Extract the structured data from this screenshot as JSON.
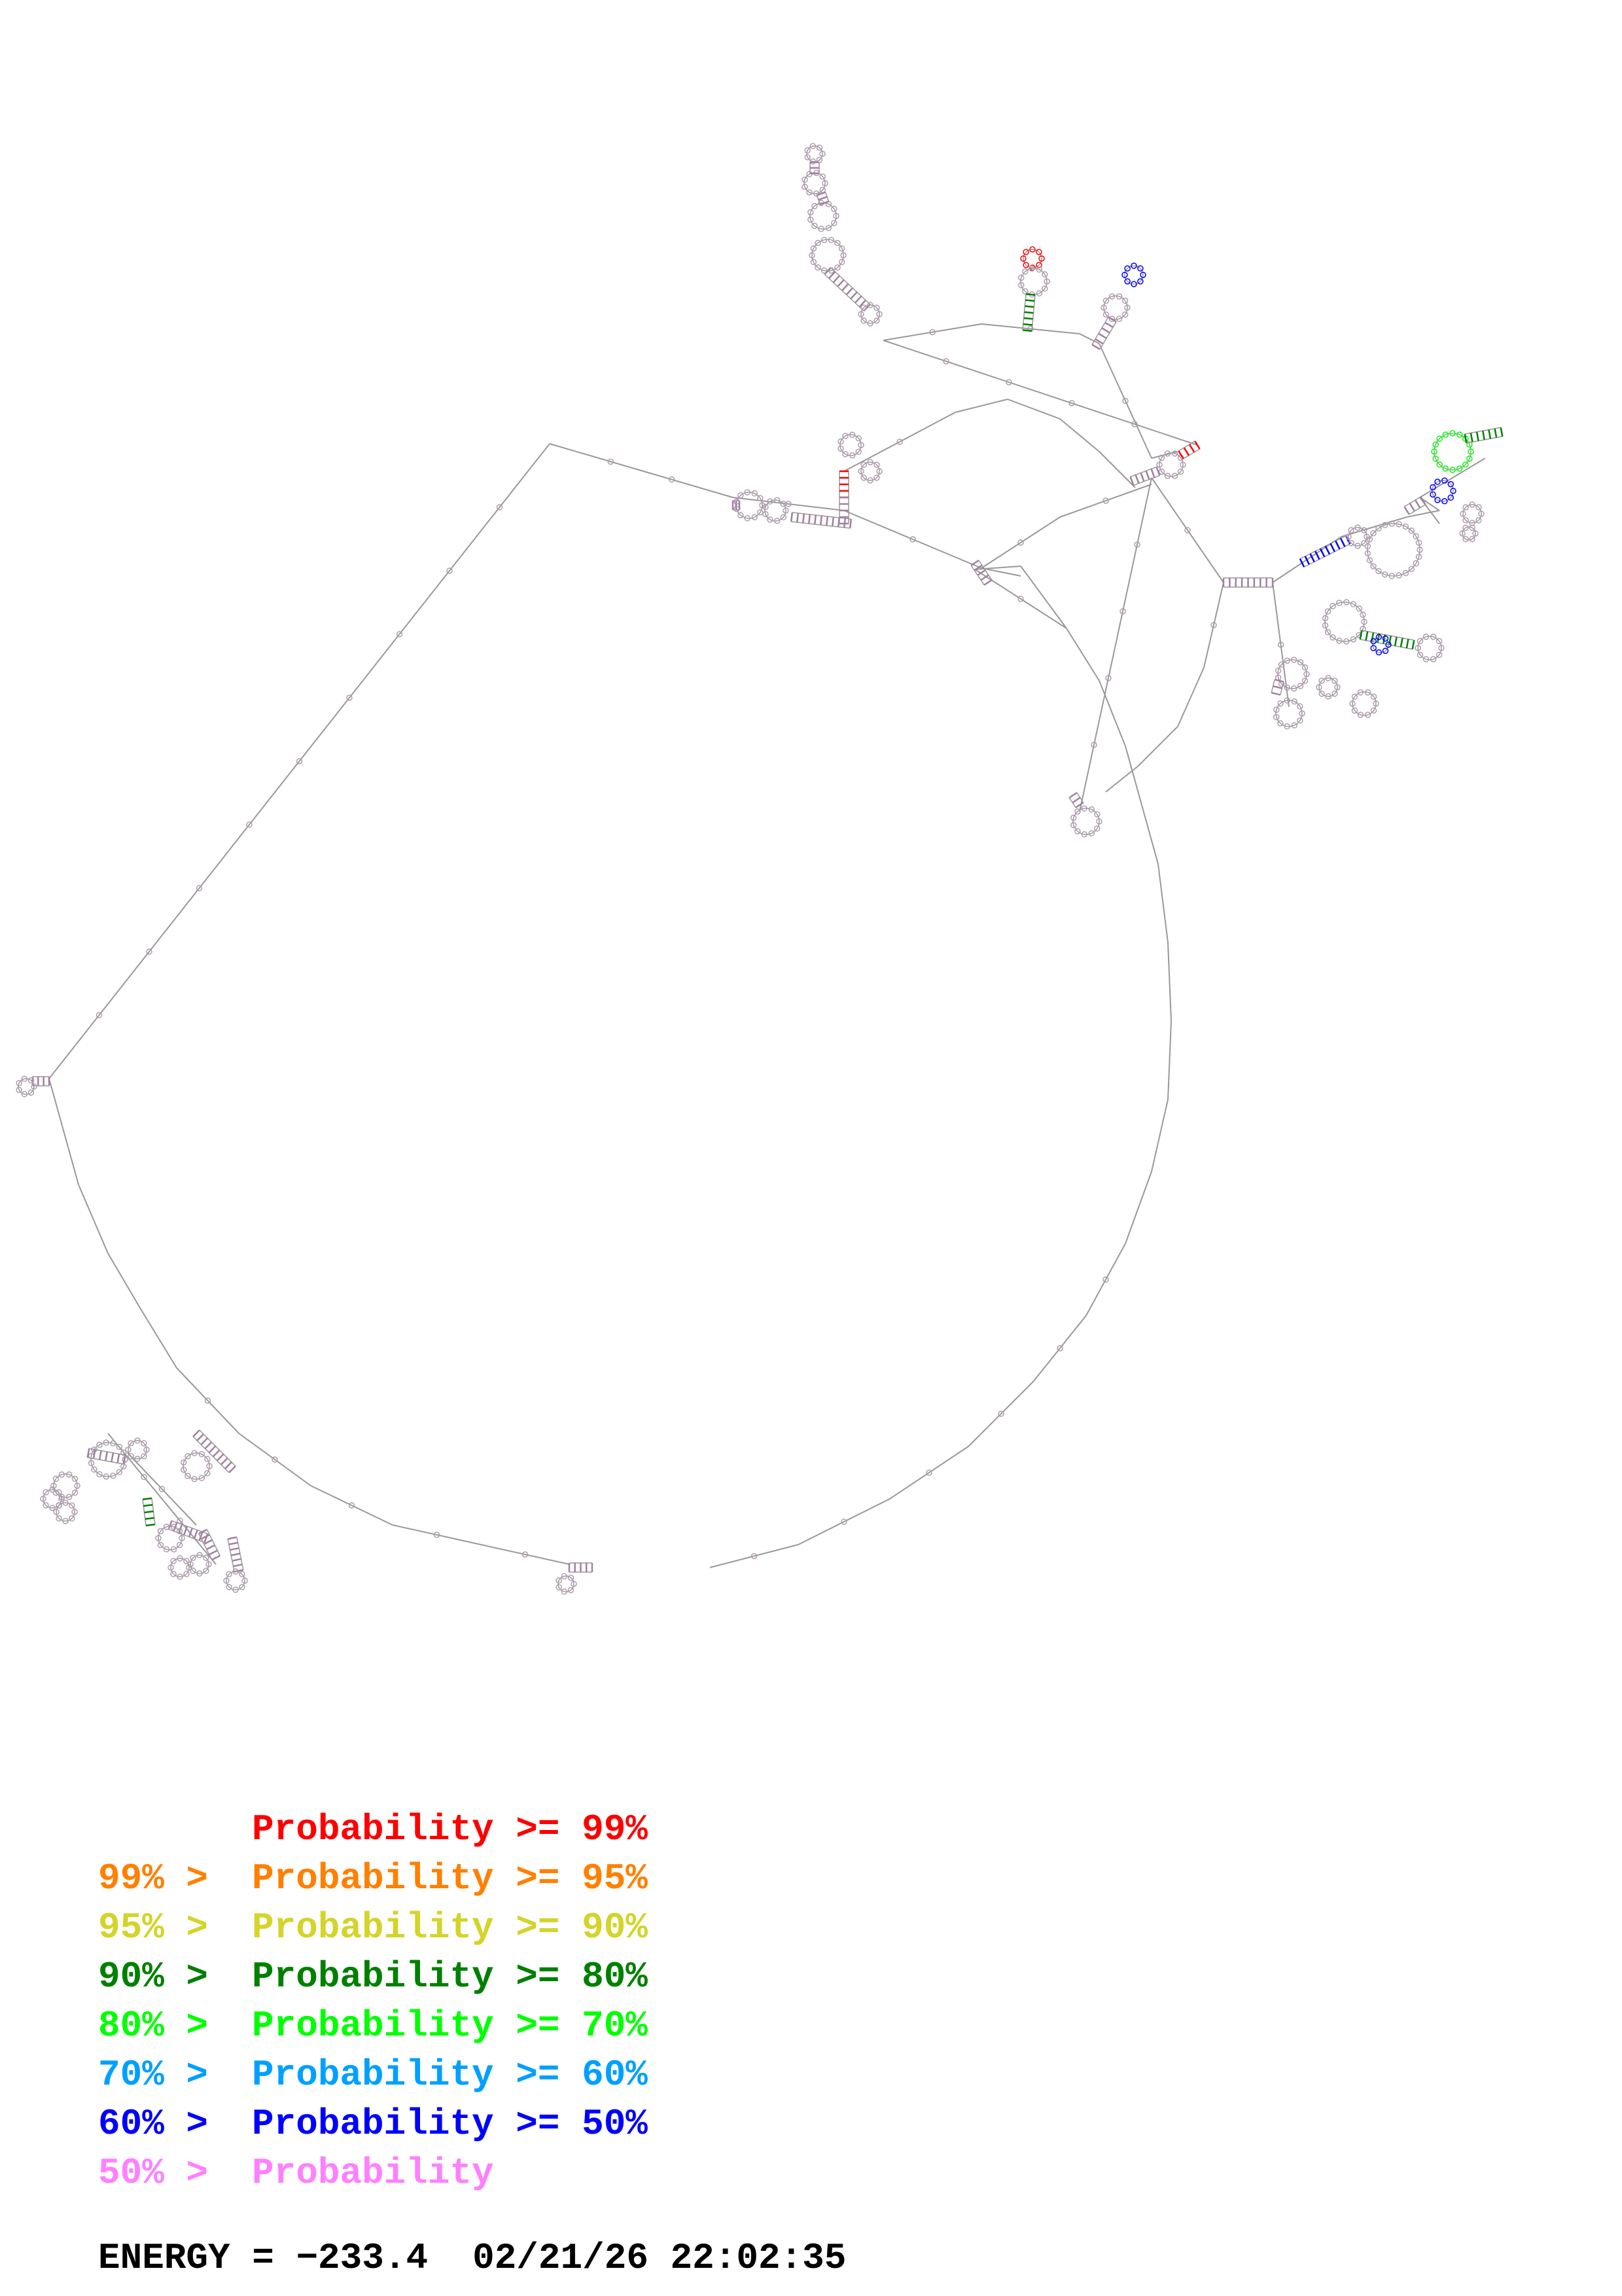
{
  "legend": [
    {
      "prefix": "",
      "label": "Probability >= 99%",
      "color": "#ff0000"
    },
    {
      "prefix": "99% > ",
      "label": "Probability >= 95%",
      "color": "#ff8000"
    },
    {
      "prefix": "95% > ",
      "label": "Probability >= 90%",
      "color": "#d4d42a"
    },
    {
      "prefix": "90% > ",
      "label": "Probability >= 80%",
      "color": "#008000"
    },
    {
      "prefix": "80% > ",
      "label": "Probability >= 70%",
      "color": "#00ff00"
    },
    {
      "prefix": "70% > ",
      "label": "Probability >= 60%",
      "color": "#00a0ff"
    },
    {
      "prefix": "60% > ",
      "label": "Probability >= 50%",
      "color": "#0000ff"
    },
    {
      "prefix": "50% > ",
      "label": "Probability",
      "color": "#ff80ff"
    }
  ],
  "footer": {
    "energy_label": "ENERGY = ",
    "energy_value": "−233.4",
    "timestamp": "02/21/26 22:02:35"
  },
  "structure": {
    "backbone_color": "#999999",
    "node_color": "#b09cb0",
    "stem_colors": [
      "#a080a0",
      "#008000",
      "#0000ff",
      "#ff0000",
      "#d4d42a"
    ]
  }
}
